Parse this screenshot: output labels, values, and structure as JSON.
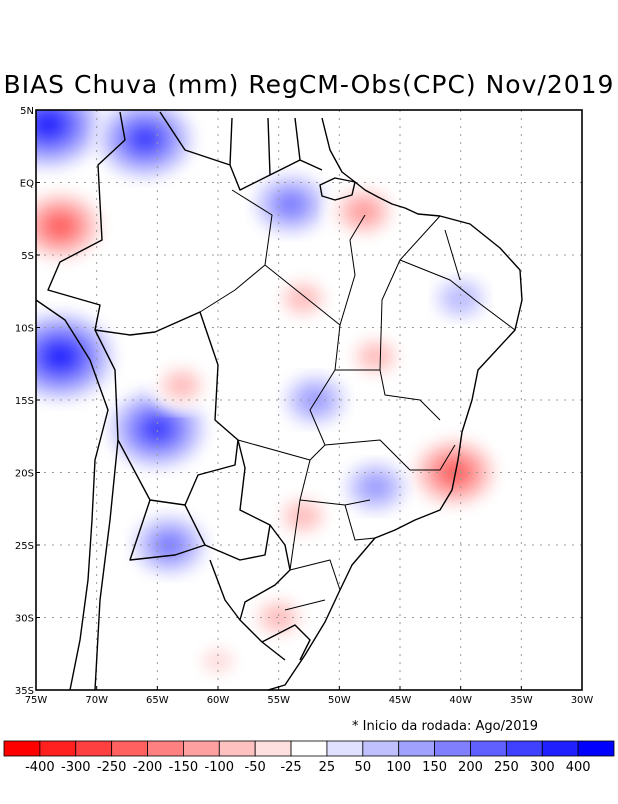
{
  "title": "BIAS Chuva (mm) RegCM-Obs(CPC) Nov/2019",
  "footnote": "* Inicio da rodada: Ago/2019",
  "axes": {
    "y_ticks": [
      "5N",
      "EQ",
      "5S",
      "10S",
      "15S",
      "20S",
      "25S",
      "30S",
      "35S"
    ],
    "x_ticks": [
      "75W",
      "70W",
      "65W",
      "60W",
      "55W",
      "50W",
      "45W",
      "40W",
      "35W",
      "30W"
    ]
  },
  "colorbar": {
    "labels": [
      "-400",
      "-300",
      "-250",
      "-200",
      "-150",
      "-100",
      "-50",
      "-25",
      "25",
      "50",
      "100",
      "150",
      "200",
      "250",
      "300",
      "400"
    ],
    "colors": [
      "#ff0000",
      "#ff2020",
      "#ff4040",
      "#ff6060",
      "#ff8080",
      "#ffa0a0",
      "#ffc0c0",
      "#ffe0e0",
      "#ffffff",
      "#e0e0ff",
      "#c0c0ff",
      "#a0a0ff",
      "#8080ff",
      "#6060ff",
      "#4040ff",
      "#2020ff",
      "#0000ff"
    ]
  },
  "chart_data": {
    "type": "heatmap",
    "title": "BIAS Chuva (mm) RegCM-Obs(CPC) Nov/2019",
    "lon_range": [
      -75,
      -30
    ],
    "lat_range": [
      -35,
      5
    ],
    "units": "mm",
    "levels": [
      -400,
      -300,
      -250,
      -200,
      -150,
      -100,
      -50,
      -25,
      25,
      50,
      100,
      150,
      200,
      250,
      300,
      400
    ],
    "anomalies": [
      {
        "name": "wet-amazon-nw",
        "lon": -74,
        "lat": 4,
        "value": 300
      },
      {
        "name": "wet-guiana-north",
        "lon": -66,
        "lat": 3,
        "value": 250
      },
      {
        "name": "wet-amapa",
        "lon": -54,
        "lat": -1.5,
        "value": 150
      },
      {
        "name": "dry-west-amazon",
        "lon": -73,
        "lat": -3,
        "value": -250
      },
      {
        "name": "dry-para-coast",
        "lon": -48,
        "lat": -2,
        "value": -150
      },
      {
        "name": "wet-peru-bolivia",
        "lon": -73,
        "lat": -12,
        "value": 300
      },
      {
        "name": "wet-bolivia-central",
        "lon": -65,
        "lat": -17,
        "value": 250
      },
      {
        "name": "dry-rondonia",
        "lon": -63,
        "lat": -14,
        "value": -100
      },
      {
        "name": "wet-chaco",
        "lon": -64,
        "lat": -25,
        "value": 150
      },
      {
        "name": "dry-para-central",
        "lon": -53,
        "lat": -8,
        "value": -100
      },
      {
        "name": "wet-goias",
        "lon": -52,
        "lat": -15,
        "value": 100
      },
      {
        "name": "dry-tocantins",
        "lon": -47,
        "lat": -12,
        "value": -100
      },
      {
        "name": "dry-espirito-santo",
        "lon": -40.5,
        "lat": -20,
        "value": -250
      },
      {
        "name": "wet-minas",
        "lon": -47,
        "lat": -21,
        "value": 100
      },
      {
        "name": "wet-northeast",
        "lon": -40,
        "lat": -8,
        "value": 50
      },
      {
        "name": "dry-parana",
        "lon": -53,
        "lat": -23,
        "value": -100
      },
      {
        "name": "dry-rio-grande-do-sul",
        "lon": -55,
        "lat": -30,
        "value": -100
      },
      {
        "name": "dry-argentina-south",
        "lon": -60,
        "lat": -33,
        "value": -50
      }
    ]
  }
}
